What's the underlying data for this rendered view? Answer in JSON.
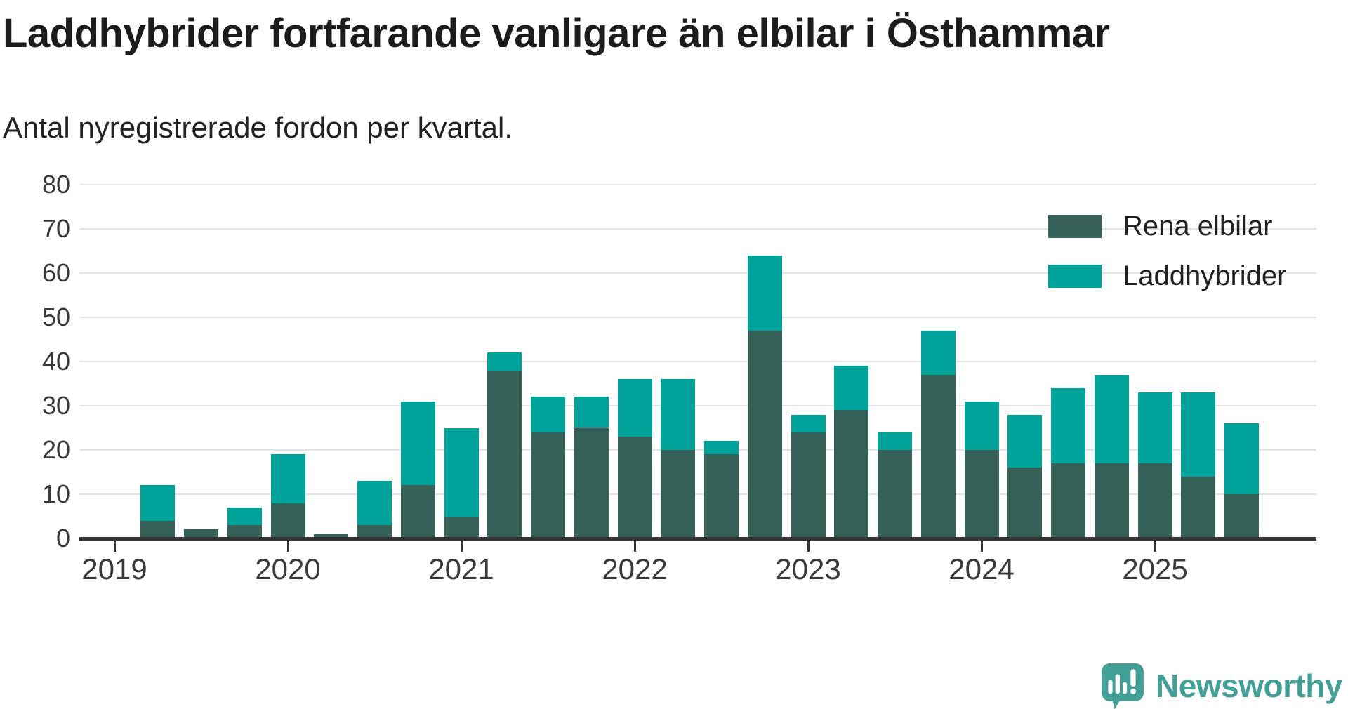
{
  "header": {
    "title": "Laddhybrider fortfarande vanligare än elbilar i Östhammar",
    "subtitle": "Antal nyregistrerade fordon per kvartal."
  },
  "colors": {
    "rena_elbilar": "#366158",
    "laddhybrider": "#00a399",
    "axis": "#333333",
    "grid": "#e3e3e3",
    "brand_teal": "#43a097"
  },
  "legend": {
    "items": [
      {
        "label": "Rena elbilar",
        "color": "#366158"
      },
      {
        "label": "Laddhybrider",
        "color": "#00a399"
      }
    ]
  },
  "footer": {
    "brand_name": "Newsworthy",
    "brand_icon": "speech-bubble-bar-chart-exclamation-icon"
  },
  "chart_data": {
    "type": "bar",
    "stacked": true,
    "title": "Laddhybrider fortfarande vanligare än elbilar i Östhammar",
    "subtitle": "Antal nyregistrerade fordon per kvartal.",
    "xlabel": "",
    "ylabel": "",
    "ylim": [
      0,
      80
    ],
    "y_ticks": [
      0,
      10,
      20,
      30,
      40,
      50,
      60,
      70,
      80
    ],
    "grid": true,
    "legend_position": "top-right",
    "x_year_ticks": [
      "2019",
      "2020",
      "2021",
      "2022",
      "2023",
      "2024",
      "2025"
    ],
    "categories": [
      "2019 Q1",
      "2019 Q2",
      "2019 Q3",
      "2019 Q4",
      "2020 Q1",
      "2020 Q2",
      "2020 Q3",
      "2020 Q4",
      "2021 Q1",
      "2021 Q2",
      "2021 Q3",
      "2021 Q4",
      "2022 Q1",
      "2022 Q2",
      "2022 Q3",
      "2022 Q4",
      "2023 Q1",
      "2023 Q2",
      "2023 Q3",
      "2023 Q4",
      "2024 Q1",
      "2024 Q2",
      "2024 Q3",
      "2024 Q4",
      "2025 Q1",
      "2025 Q2",
      "2025 Q3"
    ],
    "series": [
      {
        "name": "Rena elbilar",
        "color": "#366158",
        "values": [
          0,
          4,
          2,
          3,
          8,
          1,
          3,
          12,
          5,
          38,
          24,
          25,
          23,
          20,
          19,
          47,
          24,
          29,
          20,
          37,
          20,
          16,
          17,
          17,
          17,
          14,
          10
        ]
      },
      {
        "name": "Laddhybrider",
        "color": "#00a399",
        "values": [
          0,
          8,
          0,
          4,
          11,
          0,
          10,
          19,
          20,
          4,
          8,
          7,
          13,
          16,
          3,
          17,
          4,
          10,
          4,
          10,
          11,
          12,
          17,
          20,
          16,
          19,
          16
        ]
      }
    ],
    "totals": [
      0,
      12,
      2,
      7,
      19,
      1,
      13,
      31,
      25,
      42,
      32,
      32,
      36,
      36,
      22,
      64,
      28,
      39,
      24,
      47,
      31,
      28,
      34,
      37,
      33,
      33,
      26
    ]
  }
}
